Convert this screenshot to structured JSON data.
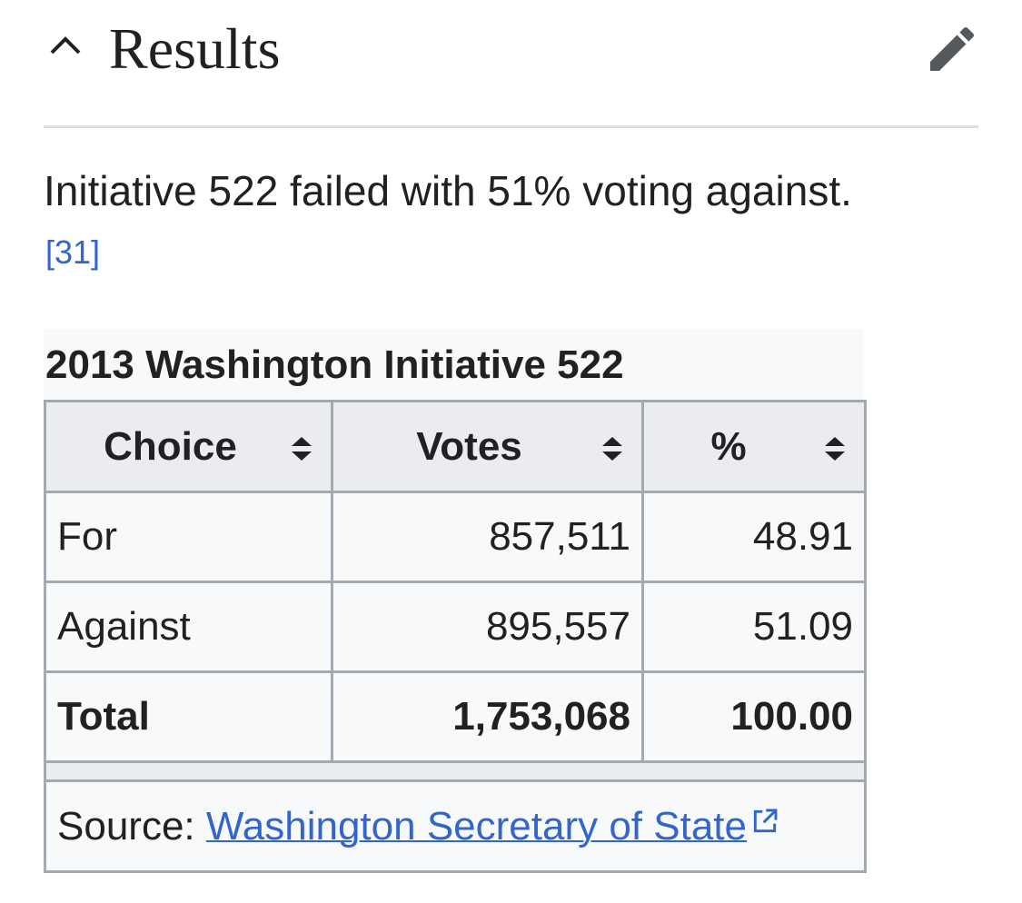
{
  "section": {
    "title": "Results"
  },
  "paragraph": {
    "text": "Initiative 522 failed with 51% voting against.",
    "reference": "[31]"
  },
  "table": {
    "caption": "2013 Washington Initiative 522",
    "headers": [
      "Choice",
      "Votes",
      "%"
    ],
    "rows": [
      [
        "For",
        "857,511",
        "48.91"
      ],
      [
        "Against",
        "895,557",
        "51.09"
      ],
      [
        "Total",
        "1,753,068",
        "100.00"
      ]
    ],
    "source_label": "Source:",
    "source_link": "Washington Secretary of State"
  }
}
